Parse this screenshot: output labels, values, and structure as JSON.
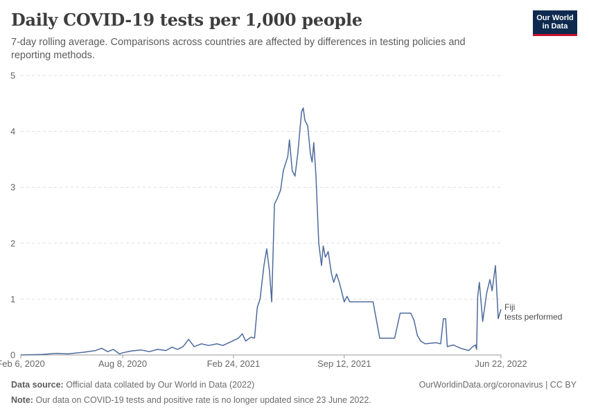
{
  "header": {
    "title": "Daily COVID-19 tests per 1,000 people",
    "subtitle": "7-day rolling average. Comparisons across countries are affected by differences in testing policies and reporting methods."
  },
  "logo": {
    "line1": "Our World",
    "line2": "in Data",
    "bg": "#0f2a4f",
    "accent": "#c8102e"
  },
  "footer": {
    "source_label": "Data source:",
    "source_text": "Official data collated by Our World in Data (2022)",
    "note_label": "Note:",
    "note_text": "Our data on COVID-19 tests and positive rate is no longer updated since 23 June 2022.",
    "credit": "OurWorldinData.org/coronavirus | CC BY"
  },
  "chart_data": {
    "type": "line",
    "title": "Daily COVID-19 tests per 1,000 people",
    "xlabel": "",
    "ylabel": "",
    "ylim": [
      0,
      5
    ],
    "xlim": [
      "2020-02-06",
      "2022-06-22"
    ],
    "yticks": [
      "0",
      "1",
      "2",
      "3",
      "4",
      "5"
    ],
    "xticks": [
      {
        "date": "2020-02-06",
        "label": "Feb 6, 2020"
      },
      {
        "date": "2020-08-08",
        "label": "Aug 8, 2020"
      },
      {
        "date": "2021-02-24",
        "label": "Feb 24, 2021"
      },
      {
        "date": "2021-09-12",
        "label": "Sep 12, 2021"
      },
      {
        "date": "2022-06-22",
        "label": "Jun 22, 2022"
      }
    ],
    "grid": "horizontal dashed",
    "line_color": "#4c6a9c",
    "series": [
      {
        "name": "Fiji",
        "label_line1": "Fiji",
        "label_line2": "tests performed",
        "points": [
          [
            "2020-02-06",
            0.0
          ],
          [
            "2020-03-15",
            0.01
          ],
          [
            "2020-04-10",
            0.03
          ],
          [
            "2020-05-01",
            0.02
          ],
          [
            "2020-05-30",
            0.05
          ],
          [
            "2020-06-20",
            0.08
          ],
          [
            "2020-07-01",
            0.12
          ],
          [
            "2020-07-12",
            0.06
          ],
          [
            "2020-07-22",
            0.1
          ],
          [
            "2020-08-02",
            0.02
          ],
          [
            "2020-08-08",
            0.04
          ],
          [
            "2020-08-22",
            0.07
          ],
          [
            "2020-09-10",
            0.09
          ],
          [
            "2020-09-25",
            0.06
          ],
          [
            "2020-10-10",
            0.1
          ],
          [
            "2020-10-25",
            0.08
          ],
          [
            "2020-11-05",
            0.14
          ],
          [
            "2020-11-15",
            0.1
          ],
          [
            "2020-11-25",
            0.15
          ],
          [
            "2020-12-05",
            0.28
          ],
          [
            "2020-12-15",
            0.15
          ],
          [
            "2020-12-28",
            0.2
          ],
          [
            "2021-01-10",
            0.17
          ],
          [
            "2021-01-25",
            0.2
          ],
          [
            "2021-02-05",
            0.17
          ],
          [
            "2021-02-20",
            0.24
          ],
          [
            "2021-03-05",
            0.3
          ],
          [
            "2021-03-12",
            0.38
          ],
          [
            "2021-03-18",
            0.25
          ],
          [
            "2021-03-28",
            0.32
          ],
          [
            "2021-04-03",
            0.3
          ],
          [
            "2021-04-08",
            0.85
          ],
          [
            "2021-04-13",
            1.0
          ],
          [
            "2021-04-20",
            1.6
          ],
          [
            "2021-04-25",
            1.9
          ],
          [
            "2021-04-30",
            1.5
          ],
          [
            "2021-05-04",
            0.95
          ],
          [
            "2021-05-09",
            2.7
          ],
          [
            "2021-05-14",
            2.8
          ],
          [
            "2021-05-20",
            2.95
          ],
          [
            "2021-05-25",
            3.3
          ],
          [
            "2021-06-02",
            3.55
          ],
          [
            "2021-06-05",
            3.85
          ],
          [
            "2021-06-10",
            3.3
          ],
          [
            "2021-06-15",
            3.2
          ],
          [
            "2021-06-20",
            3.6
          ],
          [
            "2021-06-27",
            4.35
          ],
          [
            "2021-06-30",
            4.42
          ],
          [
            "2021-07-03",
            4.2
          ],
          [
            "2021-07-08",
            4.1
          ],
          [
            "2021-07-13",
            3.6
          ],
          [
            "2021-07-16",
            3.45
          ],
          [
            "2021-07-19",
            3.8
          ],
          [
            "2021-07-23",
            3.2
          ],
          [
            "2021-07-28",
            2.0
          ],
          [
            "2021-08-02",
            1.6
          ],
          [
            "2021-08-05",
            1.95
          ],
          [
            "2021-08-09",
            1.75
          ],
          [
            "2021-08-14",
            1.85
          ],
          [
            "2021-08-20",
            1.45
          ],
          [
            "2021-08-24",
            1.3
          ],
          [
            "2021-08-29",
            1.45
          ],
          [
            "2021-09-03",
            1.3
          ],
          [
            "2021-09-07",
            1.15
          ],
          [
            "2021-09-12",
            0.95
          ],
          [
            "2021-09-17",
            1.05
          ],
          [
            "2021-09-22",
            0.95
          ],
          [
            "2021-10-01",
            0.95
          ],
          [
            "2021-11-03",
            0.95
          ],
          [
            "2021-11-15",
            0.3
          ],
          [
            "2021-12-12",
            0.3
          ],
          [
            "2021-12-22",
            0.75
          ],
          [
            "2022-01-10",
            0.75
          ],
          [
            "2022-01-16",
            0.62
          ],
          [
            "2022-01-22",
            0.35
          ],
          [
            "2022-01-28",
            0.25
          ],
          [
            "2022-02-05",
            0.2
          ],
          [
            "2022-02-25",
            0.22
          ],
          [
            "2022-03-05",
            0.2
          ],
          [
            "2022-03-10",
            0.65
          ],
          [
            "2022-03-14",
            0.65
          ],
          [
            "2022-03-17",
            0.15
          ],
          [
            "2022-03-28",
            0.18
          ],
          [
            "2022-04-10",
            0.12
          ],
          [
            "2022-04-25",
            0.08
          ],
          [
            "2022-05-02",
            0.15
          ],
          [
            "2022-05-07",
            0.18
          ],
          [
            "2022-05-09",
            0.1
          ],
          [
            "2022-05-11",
            1.05
          ],
          [
            "2022-05-14",
            1.3
          ],
          [
            "2022-05-20",
            0.6
          ],
          [
            "2022-05-27",
            1.1
          ],
          [
            "2022-06-02",
            1.35
          ],
          [
            "2022-06-06",
            1.15
          ],
          [
            "2022-06-12",
            1.6
          ],
          [
            "2022-06-17",
            0.65
          ],
          [
            "2022-06-22",
            0.82
          ]
        ]
      }
    ]
  }
}
